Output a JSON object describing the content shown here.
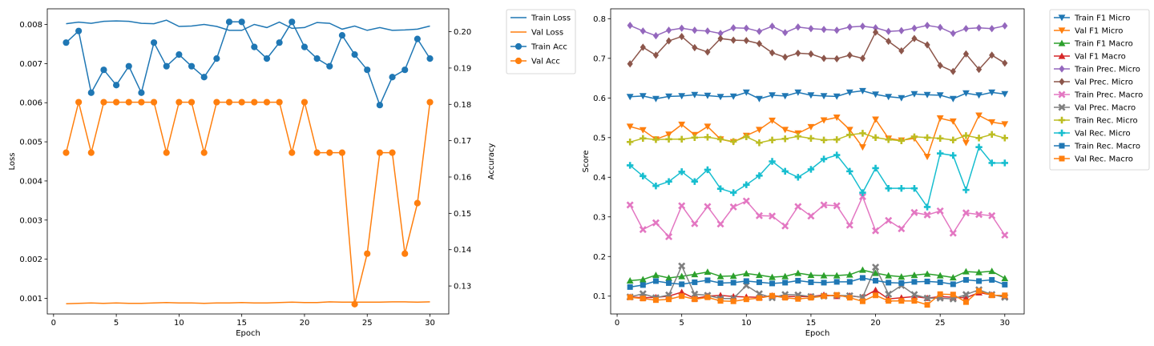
{
  "chart_data": [
    {
      "type": "line",
      "xlabel": "Epoch",
      "ylabel": "Loss",
      "y2label": "Accuracy",
      "xlim": [
        -0.5,
        31.5
      ],
      "ylim": [
        0.0006,
        0.0084
      ],
      "y2lim": [
        0.1223,
        0.2063
      ],
      "xticks": [
        "0",
        "5",
        "10",
        "15",
        "20",
        "25",
        "30"
      ],
      "yticks": [
        "0.001",
        "0.002",
        "0.003",
        "0.004",
        "0.005",
        "0.006",
        "0.007",
        "0.008"
      ],
      "y2ticks": [
        "0.13",
        "0.14",
        "0.15",
        "0.16",
        "0.17",
        "0.18",
        "0.19",
        "0.20"
      ],
      "legend": "outside-right",
      "x": [
        1,
        2,
        3,
        4,
        5,
        6,
        7,
        8,
        9,
        10,
        11,
        12,
        13,
        14,
        15,
        16,
        17,
        18,
        19,
        20,
        21,
        22,
        23,
        24,
        25,
        26,
        27,
        28,
        29,
        30
      ],
      "series": [
        {
          "name": "Train Loss",
          "axis": "left",
          "color": "#1f77b4",
          "marker": "none",
          "values": [
            0.00802,
            0.00806,
            0.00803,
            0.00808,
            0.00809,
            0.00808,
            0.00803,
            0.00802,
            0.00811,
            0.00795,
            0.00796,
            0.008,
            0.00795,
            0.00785,
            0.00785,
            0.008,
            0.00792,
            0.00806,
            0.0079,
            0.00792,
            0.00805,
            0.00803,
            0.00788,
            0.00796,
            0.00785,
            0.00792,
            0.00785,
            0.00786,
            0.00788,
            0.00796
          ]
        },
        {
          "name": "Val Loss",
          "axis": "left",
          "color": "#ff7f0e",
          "marker": "none",
          "values": [
            0.00086,
            0.00087,
            0.00088,
            0.00087,
            0.00088,
            0.00087,
            0.00087,
            0.00088,
            0.00089,
            0.00088,
            0.00088,
            0.00087,
            0.00088,
            0.00088,
            0.00089,
            0.00088,
            0.00088,
            0.00089,
            0.0009,
            0.00089,
            0.00089,
            0.00091,
            0.0009,
            0.0009,
            0.0009,
            0.0009,
            0.00091,
            0.00091,
            0.0009,
            0.00091
          ]
        },
        {
          "name": "Train Acc",
          "axis": "right",
          "color": "#1f77b4",
          "marker": "circle",
          "values": [
            0.197,
            0.2002,
            0.1832,
            0.1895,
            0.1853,
            0.1905,
            0.1832,
            0.197,
            0.1905,
            0.1937,
            0.1905,
            0.1875,
            0.1926,
            0.2027,
            0.2027,
            0.1958,
            0.1926,
            0.197,
            0.2027,
            0.1958,
            0.1926,
            0.1905,
            0.199,
            0.1937,
            0.1895,
            0.1798,
            0.1875,
            0.1895,
            0.198,
            0.1926
          ]
        },
        {
          "name": "Val Acc",
          "axis": "right",
          "color": "#ff7f0e",
          "marker": "circle",
          "values": [
            0.1667,
            0.1806,
            0.1667,
            0.1806,
            0.1806,
            0.1806,
            0.1806,
            0.1806,
            0.1667,
            0.1806,
            0.1806,
            0.1667,
            0.1806,
            0.1806,
            0.1806,
            0.1806,
            0.1806,
            0.1806,
            0.1667,
            0.1806,
            0.1667,
            0.1667,
            0.1667,
            0.125,
            0.1389,
            0.1667,
            0.1667,
            0.1389,
            0.1528,
            0.1806
          ]
        }
      ]
    },
    {
      "type": "line",
      "xlabel": "Epoch",
      "ylabel": "Score",
      "xlim": [
        -0.5,
        31.5
      ],
      "ylim": [
        0.055,
        0.825
      ],
      "xticks": [
        "0",
        "5",
        "10",
        "15",
        "20",
        "25",
        "30"
      ],
      "yticks": [
        "0.1",
        "0.2",
        "0.3",
        "0.4",
        "0.5",
        "0.6",
        "0.7",
        "0.8"
      ],
      "legend": "outside-right",
      "x": [
        1,
        2,
        3,
        4,
        5,
        6,
        7,
        8,
        9,
        10,
        11,
        12,
        13,
        14,
        15,
        16,
        17,
        18,
        19,
        20,
        21,
        22,
        23,
        24,
        25,
        26,
        27,
        28,
        29,
        30
      ],
      "series": [
        {
          "name": "Train F1 Micro",
          "color": "#1f77b4",
          "marker": "tri_down",
          "values": [
            0.603,
            0.605,
            0.598,
            0.604,
            0.605,
            0.608,
            0.606,
            0.603,
            0.604,
            0.614,
            0.598,
            0.607,
            0.605,
            0.614,
            0.607,
            0.605,
            0.604,
            0.614,
            0.618,
            0.609,
            0.603,
            0.6,
            0.61,
            0.608,
            0.607,
            0.598,
            0.612,
            0.607,
            0.614,
            0.61
          ]
        },
        {
          "name": "Val F1 Micro",
          "color": "#ff7f0e",
          "marker": "tri_down",
          "values": [
            0.528,
            0.519,
            0.496,
            0.508,
            0.533,
            0.507,
            0.528,
            0.496,
            0.489,
            0.505,
            0.52,
            0.543,
            0.52,
            0.511,
            0.527,
            0.544,
            0.551,
            0.52,
            0.476,
            0.546,
            0.498,
            0.493,
            0.498,
            0.452,
            0.549,
            0.541,
            0.487,
            0.556,
            0.539,
            0.534
          ]
        },
        {
          "name": "Train F1 Macro",
          "color": "#2ca02c",
          "marker": "tri_up",
          "values": [
            0.139,
            0.142,
            0.153,
            0.146,
            0.15,
            0.155,
            0.161,
            0.15,
            0.151,
            0.157,
            0.153,
            0.148,
            0.15,
            0.158,
            0.153,
            0.152,
            0.152,
            0.154,
            0.166,
            0.158,
            0.152,
            0.149,
            0.153,
            0.156,
            0.152,
            0.147,
            0.162,
            0.16,
            0.163,
            0.145
          ]
        },
        {
          "name": "Val F1 Macro",
          "color": "#d62728",
          "marker": "tri_up",
          "values": [
            0.098,
            0.096,
            0.097,
            0.1,
            0.11,
            0.094,
            0.1,
            0.102,
            0.099,
            0.098,
            0.097,
            0.101,
            0.099,
            0.099,
            0.099,
            0.103,
            0.1,
            0.101,
            0.097,
            0.115,
            0.093,
            0.096,
            0.099,
            0.095,
            0.099,
            0.097,
            0.096,
            0.109,
            0.103,
            0.1
          ]
        },
        {
          "name": "Train Prec. Micro",
          "color": "#9467bd",
          "marker": "diamond",
          "values": [
            0.783,
            0.769,
            0.757,
            0.771,
            0.776,
            0.771,
            0.769,
            0.763,
            0.777,
            0.776,
            0.768,
            0.781,
            0.765,
            0.779,
            0.775,
            0.773,
            0.771,
            0.779,
            0.781,
            0.777,
            0.768,
            0.77,
            0.776,
            0.783,
            0.778,
            0.763,
            0.775,
            0.777,
            0.775,
            0.782
          ]
        },
        {
          "name": "Val Prec. Micro",
          "color": "#8c564b",
          "marker": "diamond",
          "values": [
            0.686,
            0.728,
            0.708,
            0.744,
            0.755,
            0.727,
            0.716,
            0.75,
            0.746,
            0.745,
            0.737,
            0.714,
            0.703,
            0.713,
            0.711,
            0.7,
            0.699,
            0.708,
            0.7,
            0.766,
            0.743,
            0.719,
            0.75,
            0.734,
            0.682,
            0.667,
            0.711,
            0.672,
            0.708,
            0.688
          ]
        },
        {
          "name": "Train Prec. Macro",
          "color": "#e377c2",
          "marker": "x",
          "values": [
            0.33,
            0.268,
            0.285,
            0.25,
            0.328,
            0.283,
            0.326,
            0.282,
            0.325,
            0.34,
            0.303,
            0.302,
            0.277,
            0.326,
            0.302,
            0.33,
            0.328,
            0.279,
            0.351,
            0.265,
            0.291,
            0.27,
            0.311,
            0.305,
            0.315,
            0.259,
            0.31,
            0.306,
            0.303,
            0.254
          ]
        },
        {
          "name": "Val Prec. Macro",
          "color": "#7f7f7f",
          "marker": "x",
          "values": [
            0.098,
            0.106,
            0.096,
            0.103,
            0.176,
            0.105,
            0.102,
            0.094,
            0.094,
            0.127,
            0.106,
            0.096,
            0.104,
            0.103,
            0.099,
            0.1,
            0.102,
            0.101,
            0.097,
            0.173,
            0.105,
            0.127,
            0.104,
            0.095,
            0.095,
            0.093,
            0.104,
            0.116,
            0.104,
            0.097
          ]
        },
        {
          "name": "Train Rec. Micro",
          "color": "#bcbd22",
          "marker": "plus",
          "values": [
            0.489,
            0.498,
            0.495,
            0.496,
            0.496,
            0.5,
            0.501,
            0.496,
            0.49,
            0.502,
            0.487,
            0.494,
            0.497,
            0.503,
            0.498,
            0.494,
            0.495,
            0.507,
            0.511,
            0.5,
            0.495,
            0.492,
            0.502,
            0.5,
            0.498,
            0.494,
            0.505,
            0.499,
            0.508,
            0.499
          ]
        },
        {
          "name": "Val Rec. Micro",
          "color": "#17becf",
          "marker": "plus",
          "values": [
            0.43,
            0.403,
            0.378,
            0.389,
            0.414,
            0.389,
            0.419,
            0.371,
            0.361,
            0.381,
            0.404,
            0.44,
            0.415,
            0.4,
            0.42,
            0.446,
            0.456,
            0.415,
            0.361,
            0.423,
            0.372,
            0.372,
            0.372,
            0.325,
            0.46,
            0.455,
            0.368,
            0.476,
            0.436,
            0.436
          ]
        },
        {
          "name": "Train Rec. Macro",
          "color": "#1f77b4",
          "marker": "square",
          "values": [
            0.123,
            0.128,
            0.138,
            0.133,
            0.13,
            0.135,
            0.14,
            0.133,
            0.134,
            0.138,
            0.135,
            0.132,
            0.134,
            0.139,
            0.135,
            0.134,
            0.136,
            0.136,
            0.146,
            0.139,
            0.134,
            0.133,
            0.136,
            0.137,
            0.135,
            0.13,
            0.141,
            0.138,
            0.141,
            0.129
          ]
        },
        {
          "name": "Val Rec. Macro",
          "color": "#ff7f0e",
          "marker": "square",
          "values": [
            0.097,
            0.094,
            0.09,
            0.092,
            0.1,
            0.092,
            0.097,
            0.088,
            0.087,
            0.092,
            0.095,
            0.101,
            0.096,
            0.093,
            0.096,
            0.1,
            0.103,
            0.096,
            0.087,
            0.102,
            0.088,
            0.088,
            0.088,
            0.078,
            0.105,
            0.104,
            0.085,
            0.113,
            0.102,
            0.102
          ]
        }
      ]
    }
  ]
}
